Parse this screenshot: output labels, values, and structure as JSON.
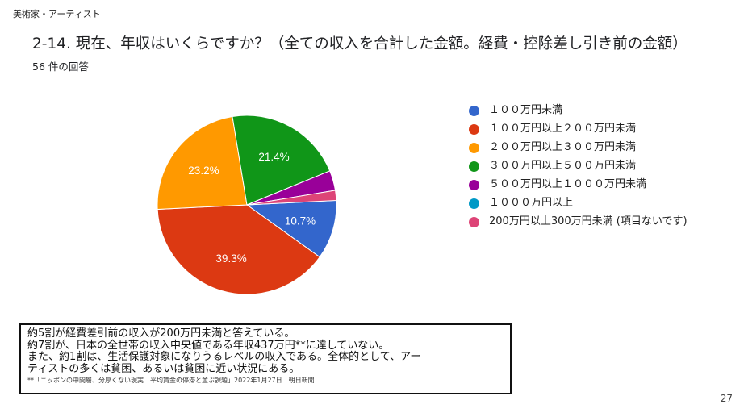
{
  "section_label": "美術家・アーティスト",
  "question_title": "2-14. 現在、年収はいくらですか？（全ての収入を合計した金額。経費・控除差し引き前の金額）",
  "response_count": "56 件の回答",
  "chart_data": {
    "type": "pie",
    "title": "2-14. 現在、年収はいくらですか？（全ての収入を合計した金額。経費・控除差し引き前の金額）",
    "legend_position": "right",
    "slices": [
      {
        "label": "１００万円未満",
        "value": 10.7,
        "display": "10.7%",
        "color": "#3366cc"
      },
      {
        "label": "１００万円以上２００万円未満",
        "value": 39.3,
        "display": "39.3%",
        "color": "#dc3912"
      },
      {
        "label": "２００万円以上３００万円未満",
        "value": 23.2,
        "display": "23.2%",
        "color": "#ff9900"
      },
      {
        "label": "３００万円以上５００万円未満",
        "value": 21.4,
        "display": "21.4%",
        "color": "#109618"
      },
      {
        "label": "５００万円以上１０００万円未満",
        "value": 3.6,
        "display": "",
        "color": "#990099"
      },
      {
        "label": "１０００万円以上",
        "value": 0,
        "display": "",
        "color": "#0099c6"
      },
      {
        "label": "200万円以上300万円未満 (項目ないです)",
        "value": 1.8,
        "display": "",
        "color": "#dd4477"
      }
    ]
  },
  "note": {
    "lines": [
      "約5割が経費差引前の収入が200万円未満と答えている。",
      "約7割が、日本の全世帯の収入中央値である年収437万円**に達していない。",
      "また、約1割は、生活保護対象になりうるレベルの収入である。全体的として、アー",
      "ティストの多くは貧困、あるいは貧困に近い状況にある。"
    ],
    "source": "**「ニッポンの中間層、分厚くない現実　平均賃金の停滞と並ぶ課題」2022年1月27日　朝日新聞"
  },
  "page_number": "27"
}
